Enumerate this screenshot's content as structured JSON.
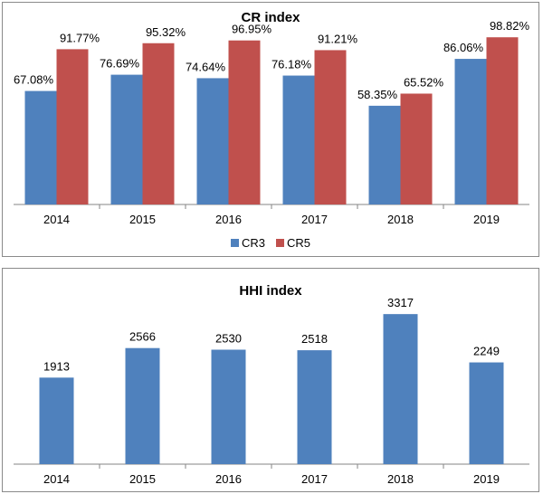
{
  "colors": {
    "cr3": "#4f81bd",
    "cr5": "#c0504d",
    "hhi": "#4f81bd",
    "axis": "#868686"
  },
  "chart_data": [
    {
      "type": "bar",
      "title": "CR index",
      "categories": [
        "2014",
        "2015",
        "2016",
        "2017",
        "2018",
        "2019"
      ],
      "series": [
        {
          "name": "CR3",
          "values": [
            67.08,
            76.69,
            74.64,
            76.18,
            58.35,
            86.06
          ],
          "labels": [
            "67.08%",
            "76.69%",
            "74.64%",
            "76.18%",
            "58.35%",
            "86.06%"
          ]
        },
        {
          "name": "CR5",
          "values": [
            91.77,
            95.32,
            96.95,
            91.21,
            65.52,
            98.82
          ],
          "labels": [
            "91.77%",
            "95.32%",
            "96.95%",
            "91.21%",
            "65.52%",
            "98.82%"
          ]
        }
      ],
      "ylim": [
        0,
        100
      ],
      "grid": false,
      "legend_position": "bottom"
    },
    {
      "type": "bar",
      "title": "HHI index",
      "categories": [
        "2014",
        "2015",
        "2016",
        "2017",
        "2018",
        "2019"
      ],
      "series": [
        {
          "values": [
            1913,
            2566,
            2530,
            2518,
            3317,
            2249
          ],
          "labels": [
            "1913",
            "2566",
            "2530",
            "2518",
            "3317",
            "2249"
          ]
        }
      ],
      "ylim": [
        0,
        4000
      ],
      "grid": false
    }
  ]
}
